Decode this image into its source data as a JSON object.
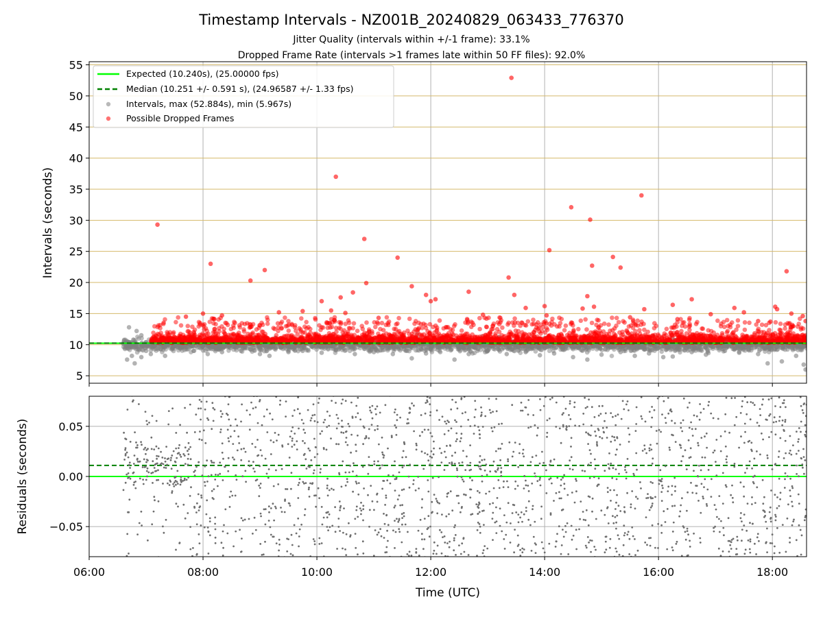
{
  "colors": {
    "expected": "#00ff00",
    "median": "#008000",
    "intervals": "#808080",
    "dropped": "#ff0000",
    "ygrid_top": "#d4b96a",
    "grid": "#b0b0b0"
  },
  "chart_data": [
    {
      "type": "scatter",
      "title": "Timestamp Intervals - NZ001B_20240829_063433_776370",
      "subtitle_lines": [
        "Jitter Quality (intervals within +/-1 frame): 33.1%",
        "Dropped Frame Rate (intervals >1 frames late within 50 FF files): 92.0%"
      ],
      "ylabel": "Intervals (seconds)",
      "xlim": [
        "06:00",
        "18:36"
      ],
      "ylim": [
        3.8,
        55.5
      ],
      "yticks": [
        5,
        10,
        15,
        20,
        25,
        30,
        35,
        40,
        45,
        50,
        55
      ],
      "grid": true,
      "legend_position": "upper-left",
      "legend": [
        "Expected (10.240s), (25.00000 fps)",
        "Median (10.251 +/- 0.591 s), (24.96587 +/- 1.33 fps)",
        "Intervals, max (52.884s), min (5.967s)",
        "Possible Dropped Frames"
      ],
      "expected": 10.24,
      "median": 10.251,
      "series": [
        {
          "name": "Intervals, max (52.884s), min (5.967s)",
          "style": "gray-points",
          "points": [
            [
              "06:36",
              10.2
            ],
            [
              "06:40",
              10.2
            ],
            [
              "06:45",
              10.3
            ],
            [
              "06:40",
              7.6
            ],
            [
              "06:45",
              8.2
            ],
            [
              "06:48",
              7.0
            ],
            [
              "06:55",
              8.0
            ],
            [
              "06:42",
              12.8
            ],
            [
              "06:50",
              12.2
            ],
            [
              "06:55",
              11.5
            ],
            [
              "07:00",
              9.0
            ],
            [
              "07:05",
              8.5
            ],
            [
              "07:15",
              9.3
            ],
            [
              "07:20",
              8.2
            ],
            [
              "07:35",
              9.5
            ],
            [
              "07:50",
              9.0
            ],
            [
              "08:05",
              8.5
            ],
            [
              "08:20",
              8.8
            ],
            [
              "08:40",
              9.0
            ],
            [
              "09:00",
              8.5
            ],
            [
              "09:10",
              8.2
            ],
            [
              "09:30",
              8.8
            ],
            [
              "09:45",
              9.0
            ],
            [
              "10:05",
              8.7
            ],
            [
              "10:20",
              9.2
            ],
            [
              "10:40",
              8.5
            ],
            [
              "11:00",
              8.8
            ],
            [
              "11:20",
              8.5
            ],
            [
              "11:35",
              9.0
            ],
            [
              "11:40",
              7.8
            ],
            [
              "11:55",
              8.6
            ],
            [
              "12:10",
              8.8
            ],
            [
              "12:25",
              7.6
            ],
            [
              "12:40",
              8.5
            ],
            [
              "13:00",
              9.0
            ],
            [
              "13:20",
              8.5
            ],
            [
              "13:40",
              8.8
            ],
            [
              "13:55",
              8.3
            ],
            [
              "14:10",
              8.6
            ],
            [
              "14:30",
              8.0
            ],
            [
              "14:45",
              7.6
            ],
            [
              "15:00",
              8.4
            ],
            [
              "15:20",
              8.8
            ],
            [
              "15:35",
              8.2
            ],
            [
              "15:50",
              8.6
            ],
            [
              "16:05",
              8.0
            ],
            [
              "16:15",
              8.1
            ],
            [
              "16:35",
              8.8
            ],
            [
              "16:50",
              8.4
            ],
            [
              "17:10",
              9.0
            ],
            [
              "17:25",
              8.7
            ],
            [
              "17:45",
              8.5
            ],
            [
              "17:55",
              7.0
            ],
            [
              "18:10",
              7.3
            ],
            [
              "18:25",
              8.2
            ],
            [
              "18:33",
              6.8
            ],
            [
              "18:35",
              6.0
            ]
          ]
        },
        {
          "name": "Possible Dropped Frames",
          "style": "red-points",
          "points": [
            [
              "07:12",
              29.3
            ],
            [
              "08:08",
              23.0
            ],
            [
              "08:50",
              20.3
            ],
            [
              "09:05",
              22.0
            ],
            [
              "10:20",
              37.0
            ],
            [
              "10:50",
              27.0
            ],
            [
              "10:52",
              19.9
            ],
            [
              "11:25",
              24.0
            ],
            [
              "11:40",
              19.4
            ],
            [
              "11:55",
              18.0
            ],
            [
              "12:00",
              17.0
            ],
            [
              "12:05",
              17.3
            ],
            [
              "12:40",
              18.5
            ],
            [
              "13:22",
              20.8
            ],
            [
              "13:25",
              52.9
            ],
            [
              "13:28",
              18.0
            ],
            [
              "14:05",
              25.2
            ],
            [
              "14:28",
              32.1
            ],
            [
              "14:45",
              17.8
            ],
            [
              "14:48",
              30.1
            ],
            [
              "14:50",
              22.7
            ],
            [
              "14:52",
              16.1
            ],
            [
              "15:12",
              24.1
            ],
            [
              "15:20",
              22.4
            ],
            [
              "15:42",
              34.0
            ],
            [
              "15:45",
              15.7
            ],
            [
              "16:15",
              16.4
            ],
            [
              "16:35",
              17.3
            ],
            [
              "17:20",
              15.9
            ],
            [
              "17:30",
              15.2
            ],
            [
              "17:58",
              13.7
            ],
            [
              "18:03",
              16.1
            ],
            [
              "18:05",
              15.7
            ],
            [
              "18:15",
              21.8
            ],
            [
              "18:20",
              15.0
            ],
            [
              "18:32",
              14.6
            ],
            [
              "18:35",
              13.8
            ],
            [
              "07:42",
              14.5
            ],
            [
              "08:00",
              15.0
            ],
            [
              "08:20",
              14.7
            ],
            [
              "09:20",
              15.2
            ],
            [
              "09:45",
              15.4
            ],
            [
              "10:05",
              17.0
            ],
            [
              "10:15",
              15.5
            ],
            [
              "10:25",
              17.6
            ],
            [
              "10:30",
              15.1
            ],
            [
              "10:38",
              18.4
            ],
            [
              "11:05",
              14.3
            ],
            [
              "12:55",
              14.8
            ],
            [
              "13:40",
              15.9
            ],
            [
              "14:00",
              16.2
            ],
            [
              "14:02",
              14.7
            ],
            [
              "14:40",
              15.8
            ],
            [
              "15:30",
              14.4
            ],
            [
              "16:20",
              14.1
            ],
            [
              "16:55",
              14.9
            ],
            [
              "17:45",
              13.8
            ]
          ]
        }
      ]
    },
    {
      "type": "scatter",
      "xlabel": "Time (UTC)",
      "ylabel": "Residuals (seconds)",
      "xlim": [
        "06:00",
        "18:36"
      ],
      "ylim": [
        -0.08,
        0.08
      ],
      "yticks": [
        -0.05,
        0.0,
        0.05
      ],
      "ytick_labels": [
        "−0.05",
        "0.00",
        "0.05"
      ],
      "xticks": [
        "06:00",
        "08:00",
        "10:00",
        "12:00",
        "14:00",
        "16:00",
        "18:00"
      ],
      "grid": true,
      "expected_residual": 0.0,
      "median_residual": 0.011,
      "series": [
        {
          "name": "",
          "style": "gray-dots",
          "note_count": 2000,
          "time_range": [
            "06:36",
            "18:36"
          ]
        }
      ]
    }
  ]
}
